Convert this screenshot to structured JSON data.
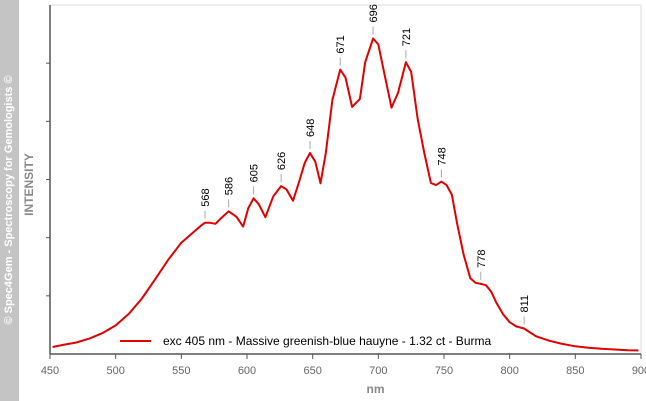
{
  "watermark": "© Spec4Gem - Spectroscopy for Gemologists ©",
  "chart_data": {
    "type": "line",
    "xlabel": "nm",
    "ylabel": "INTENSITY",
    "xlim": [
      450,
      900
    ],
    "ylim": [
      0,
      100
    ],
    "xticks": [
      450,
      500,
      550,
      600,
      650,
      700,
      750,
      800,
      850,
      900
    ],
    "grid": false,
    "legend": "bottom-center",
    "series": [
      {
        "name": "exc 405 nm - Massive greenish-blue hauyne - 1.32 ct - Burma",
        "color": "#e00000",
        "x": [
          452,
          460,
          470,
          480,
          490,
          500,
          510,
          520,
          530,
          540,
          550,
          560,
          565,
          568,
          572,
          576,
          580,
          586,
          592,
          597,
          601,
          605,
          609,
          614,
          620,
          626,
          630,
          635,
          640,
          644,
          648,
          652,
          656,
          660,
          665,
          671,
          675,
          680,
          686,
          690,
          696,
          700,
          705,
          710,
          715,
          721,
          725,
          730,
          735,
          740,
          744,
          748,
          752,
          756,
          760,
          765,
          770,
          774,
          778,
          782,
          786,
          790,
          795,
          800,
          805,
          811,
          815,
          820,
          830,
          840,
          850,
          860,
          870,
          880,
          890,
          898
        ],
        "y": [
          2.0,
          2.6,
          3.3,
          4.4,
          6.0,
          8.2,
          11.5,
          15.9,
          21.4,
          27.0,
          31.9,
          35.2,
          36.8,
          37.6,
          37.6,
          37.3,
          38.8,
          40.9,
          39.3,
          36.5,
          41.8,
          44.6,
          42.9,
          39.2,
          45.2,
          48.1,
          47.2,
          43.9,
          49.7,
          54.8,
          57.6,
          55.1,
          48.9,
          57.6,
          72.8,
          81.5,
          79.2,
          70.8,
          73.1,
          83.6,
          90.4,
          88.7,
          79.6,
          70.6,
          74.8,
          83.6,
          80.8,
          67.3,
          57.6,
          49.0,
          48.4,
          49.4,
          48.4,
          45.6,
          37.4,
          28.4,
          21.7,
          20.4,
          20.1,
          19.7,
          17.8,
          14.6,
          11.4,
          9.1,
          7.9,
          7.3,
          6.3,
          5.1,
          3.8,
          2.9,
          2.2,
          1.8,
          1.5,
          1.3,
          1.1,
          1.0
        ]
      }
    ],
    "annotations": [
      {
        "label": "568",
        "x": 568,
        "y": 37.6
      },
      {
        "label": "586",
        "x": 586,
        "y": 40.9
      },
      {
        "label": "605",
        "x": 605,
        "y": 44.6
      },
      {
        "label": "626",
        "x": 626,
        "y": 48.1
      },
      {
        "label": "648",
        "x": 648,
        "y": 57.6
      },
      {
        "label": "671",
        "x": 671,
        "y": 81.5
      },
      {
        "label": "696",
        "x": 696,
        "y": 90.4
      },
      {
        "label": "721",
        "x": 721,
        "y": 83.6
      },
      {
        "label": "748",
        "x": 748,
        "y": 49.4
      },
      {
        "label": "778",
        "x": 778,
        "y": 20.1
      },
      {
        "label": "811",
        "x": 811,
        "y": 7.3
      }
    ]
  }
}
